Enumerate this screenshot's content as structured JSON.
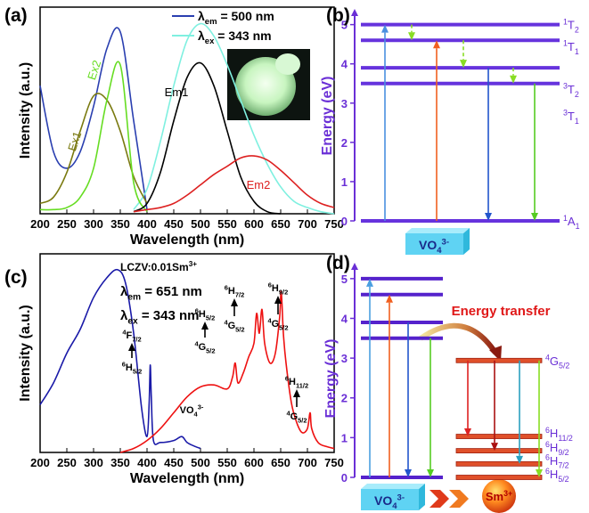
{
  "chart_data": [
    {
      "type": "line",
      "panel": "(a)",
      "xlabel": "Wavelength (nm)",
      "ylabel": "Intensity (a.u.)",
      "xlim": [
        200,
        750
      ],
      "xticks": [
        200,
        250,
        300,
        350,
        400,
        450,
        500,
        550,
        600,
        650,
        700,
        750
      ],
      "ylim": [
        0,
        100
      ],
      "x": [
        200,
        225,
        250,
        275,
        300,
        325,
        350,
        375,
        400,
        425,
        450,
        475,
        500,
        525,
        550,
        575,
        600,
        625,
        650,
        675,
        700,
        725,
        750
      ],
      "series": [
        {
          "name": {
            "base": "λ",
            "sub": "em",
            "rest": " = 500 nm"
          },
          "color": "#2a3fb0",
          "values": [
            62,
            30,
            22,
            30,
            52,
            80,
            88,
            45,
            2,
            null,
            null,
            null,
            null,
            null,
            null,
            null,
            null,
            null,
            null,
            null,
            null,
            null,
            null
          ]
        },
        {
          "name": {
            "base": "λ",
            "sub": "ex",
            "rest": " = 343 nm"
          },
          "color": "#7ff0e0",
          "values": [
            null,
            null,
            null,
            null,
            null,
            null,
            null,
            2,
            12,
            35,
            62,
            84,
            92,
            86,
            72,
            55,
            38,
            24,
            13,
            6,
            3,
            1,
            0
          ]
        },
        {
          "name": "Ex1",
          "color": "#7a7a10",
          "values": [
            5,
            8,
            20,
            40,
            57,
            55,
            40,
            18,
            5,
            null,
            null,
            null,
            null,
            null,
            null,
            null,
            null,
            null,
            null,
            null,
            null,
            null,
            null
          ]
        },
        {
          "name": "Ex2",
          "color": "#66dd22",
          "values": [
            2,
            2,
            3,
            8,
            22,
            55,
            72,
            15,
            1,
            null,
            null,
            null,
            null,
            null,
            null,
            null,
            null,
            null,
            null,
            null,
            null,
            null,
            null
          ]
        },
        {
          "name": "Em1",
          "color": "#000000",
          "values": [
            null,
            null,
            null,
            null,
            null,
            null,
            null,
            1,
            5,
            20,
            45,
            66,
            73,
            62,
            40,
            18,
            6,
            1,
            0,
            null,
            null,
            null,
            null
          ]
        },
        {
          "name": "Em2",
          "color": "#dd2020",
          "values": [
            null,
            null,
            null,
            null,
            null,
            null,
            null,
            1,
            2,
            3,
            5,
            9,
            14,
            19,
            23,
            27,
            28,
            26,
            21,
            15,
            9,
            5,
            3
          ]
        }
      ]
    },
    {
      "type": "energy-level",
      "panel": "(b)",
      "ylabel": "Energy (eV)",
      "ylim": [
        0,
        5.4
      ],
      "yticks": [
        0,
        1,
        2,
        3,
        4,
        5
      ],
      "axis_color": "#6a2fd6",
      "level_color": "#6633dd",
      "levels": [
        5.0,
        4.6,
        3.9,
        3.5,
        0
      ],
      "level_labels": [
        {
          "energy": 5.0,
          "label": {
            "pre": "1",
            "base": "T",
            "sub": "2"
          }
        },
        {
          "energy": 4.45,
          "label": {
            "pre": "1",
            "base": "T",
            "sub": "1"
          }
        },
        {
          "energy": 3.36,
          "label": {
            "pre": "3",
            "base": "T",
            "sub": "2"
          }
        },
        {
          "energy": 2.68,
          "label": {
            "pre": "3",
            "base": "T",
            "sub": "1"
          }
        },
        {
          "energy": 0,
          "label": {
            "pre": "1",
            "base": "A",
            "sub": "1"
          }
        }
      ],
      "transitions": [
        {
          "from": 0,
          "to": 5.0,
          "color": "#4a8fe0"
        },
        {
          "from": 0,
          "to": 4.6,
          "color": "#f06020"
        },
        {
          "from": 3.9,
          "to": 0,
          "color": "#2255cc"
        },
        {
          "from": 3.5,
          "to": 0,
          "color": "#55cc22"
        },
        {
          "from": 5.0,
          "to": 4.6,
          "color": "#88dd22",
          "style": "dashed"
        },
        {
          "from": 4.6,
          "to": 3.9,
          "color": "#88dd22",
          "style": "dashed"
        },
        {
          "from": 3.9,
          "to": 3.5,
          "color": "#88dd22",
          "style": "dashed"
        }
      ],
      "host": {
        "base": "VO",
        "sub": "4",
        "sup": "3-"
      }
    },
    {
      "type": "line",
      "panel": "(c)",
      "xlabel": "Wavelength (nm)",
      "ylabel": "Intensity (a.u.)",
      "xlim": [
        200,
        750
      ],
      "xticks": [
        200,
        250,
        300,
        350,
        400,
        450,
        500,
        550,
        600,
        650,
        700,
        750
      ],
      "ylim": [
        0,
        100
      ],
      "sample": {
        "base": "LCZV:0.01Sm",
        "sup": "3+"
      },
      "series": [
        {
          "name": {
            "base": "λ",
            "sub": "em",
            "rest": " = 651 nm"
          },
          "color": "#1a1aa8",
          "x": [
            200,
            225,
            250,
            275,
            300,
            325,
            345,
            360,
            375,
            390,
            400,
            404,
            406,
            408,
            412,
            425,
            450,
            465,
            475,
            490,
            500
          ],
          "values": [
            24,
            35,
            50,
            62,
            78,
            88,
            92,
            85,
            60,
            22,
            8,
            25,
            44,
            28,
            6,
            5,
            6,
            8,
            5,
            3,
            2
          ]
        },
        {
          "name": {
            "base": "λ",
            "sub": "ex",
            "rest": " = 343 nm"
          },
          "color": "#ee1111",
          "x": [
            350,
            375,
            400,
            425,
            450,
            475,
            500,
            525,
            550,
            560,
            565,
            570,
            580,
            590,
            600,
            605,
            610,
            615,
            620,
            630,
            640,
            648,
            651,
            655,
            660,
            670,
            680,
            690,
            700,
            705,
            708,
            720,
            735,
            750
          ],
          "values": [
            0,
            2,
            6,
            12,
            20,
            28,
            33,
            34,
            32,
            38,
            45,
            35,
            40,
            48,
            55,
            70,
            60,
            72,
            55,
            45,
            50,
            68,
            81,
            60,
            45,
            25,
            15,
            10,
            12,
            20,
            12,
            5,
            3,
            2
          ]
        }
      ],
      "host_label": {
        "base": "VO",
        "sub": "4",
        "sup": "3-"
      },
      "annotations": [
        {
          "upper": {
            "pre": "4",
            "base": "F",
            "sub": "7/2"
          },
          "lower": {
            "pre": "6",
            "base": "H",
            "sub": "5/2"
          }
        },
        {
          "upper": {
            "pre": "6",
            "base": "H",
            "sub": "5/2"
          },
          "lower": {
            "pre": "4",
            "base": "G",
            "sub": "5/2"
          }
        },
        {
          "upper": {
            "pre": "6",
            "base": "H",
            "sub": "7/2"
          },
          "lower": {
            "pre": "4",
            "base": "G",
            "sub": "5/2"
          }
        },
        {
          "upper": {
            "pre": "6",
            "base": "H",
            "sub": "9/2"
          },
          "lower": {
            "pre": "4",
            "base": "G",
            "sub": "5/2"
          }
        },
        {
          "upper": {
            "pre": "6",
            "base": "H",
            "sub": "11/2"
          },
          "lower": {
            "pre": "4",
            "base": "G",
            "sub": "5/2"
          }
        }
      ]
    },
    {
      "type": "energy-level",
      "panel": "(d)",
      "ylabel": "Energy (eV)",
      "ylim": [
        0,
        5.4
      ],
      "yticks": [
        0,
        1,
        2,
        3,
        4,
        5
      ],
      "axis_color": "#6a2fd6",
      "level_color": "#5522cc",
      "ion_color": "#e0502a",
      "levels": [
        5.0,
        4.6,
        3.9,
        3.5,
        0
      ],
      "ion_levels": [
        {
          "energy": 2.94,
          "label": {
            "pre": "4",
            "base": "G",
            "sub": "5/2"
          }
        },
        {
          "energy": 1.03,
          "label": {
            "pre": "6",
            "base": "H",
            "sub": "11/2"
          }
        },
        {
          "energy": 0.67,
          "label": {
            "pre": "6",
            "base": "H",
            "sub": "9/2"
          }
        },
        {
          "energy": 0.34,
          "label": {
            "pre": "6",
            "base": "H",
            "sub": "7/2"
          }
        },
        {
          "energy": 0,
          "label": {
            "pre": "6",
            "base": "H",
            "sub": "5/2"
          }
        }
      ],
      "transitions": [
        {
          "from": 0,
          "to": 5.0,
          "color": "#4a9fe0"
        },
        {
          "from": 0,
          "to": 4.6,
          "color": "#f06020"
        },
        {
          "from": 3.9,
          "to": 0,
          "color": "#2255cc"
        },
        {
          "from": 3.5,
          "to": 0,
          "color": "#55cc22"
        },
        {
          "from": 2.94,
          "to": 1.03,
          "color": "#dd2222"
        },
        {
          "from": 2.94,
          "to": 0.67,
          "color": "#aa1111"
        },
        {
          "from": 2.94,
          "to": 0.34,
          "color": "#2aa0c0"
        },
        {
          "from": 2.94,
          "to": 0,
          "color": "#88dd22"
        }
      ],
      "transfer_label": "Energy transfer",
      "host": {
        "base": "VO",
        "sub": "4",
        "sup": "3-"
      },
      "ion": {
        "base": "Sm",
        "sup": "3+"
      }
    }
  ]
}
